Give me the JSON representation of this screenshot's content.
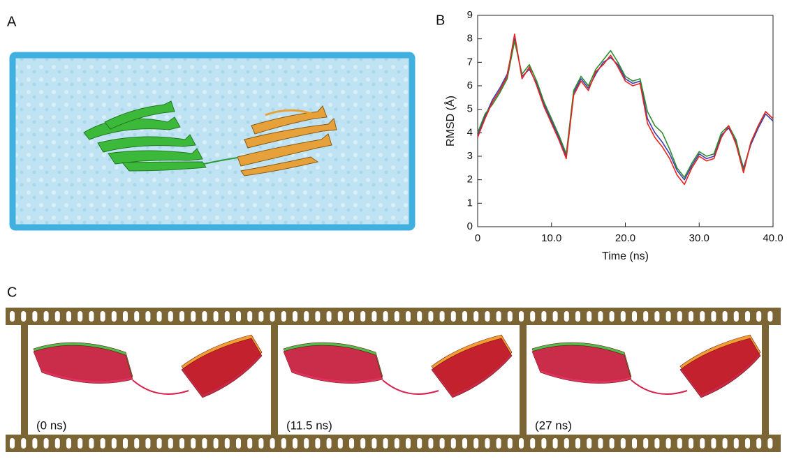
{
  "panel_labels": [
    "A",
    "B",
    "C"
  ],
  "frames": [
    {
      "label": "(0 ns)"
    },
    {
      "label": "(11.5 ns)"
    },
    {
      "label": "(27 ns)"
    }
  ],
  "chart_data": {
    "type": "line",
    "x_label": "Time (ns)",
    "y_label": "RMSD (Å)",
    "x": [
      0,
      1,
      2,
      3,
      4,
      5,
      6,
      7,
      8,
      9,
      10,
      11,
      12,
      13,
      14,
      15,
      16,
      17,
      18,
      19,
      20,
      21,
      22,
      23,
      24,
      25,
      26,
      27,
      28,
      29,
      30,
      31,
      32,
      33,
      34,
      35,
      36,
      37,
      38,
      39,
      40
    ],
    "series": [
      {
        "color": "#3b3fb0",
        "values": [
          3.9,
          4.7,
          5.4,
          5.9,
          6.5,
          8.0,
          6.4,
          6.7,
          6.1,
          5.2,
          4.5,
          3.8,
          3.0,
          5.7,
          6.3,
          5.9,
          6.5,
          7.0,
          7.2,
          6.9,
          6.3,
          6.1,
          6.2,
          4.6,
          4.0,
          3.6,
          3.1,
          2.4,
          2.0,
          2.6,
          3.1,
          2.9,
          3.0,
          3.9,
          4.2,
          3.6,
          2.5,
          3.5,
          4.2,
          4.8,
          4.5
        ]
      },
      {
        "color": "#2e8b2e",
        "values": [
          4.0,
          4.8,
          5.2,
          5.7,
          6.3,
          7.9,
          6.5,
          6.9,
          6.2,
          5.3,
          4.6,
          3.9,
          3.1,
          5.8,
          6.4,
          6.0,
          6.7,
          7.1,
          7.5,
          7.0,
          6.4,
          6.2,
          6.3,
          4.9,
          4.3,
          4.0,
          3.3,
          2.5,
          2.1,
          2.7,
          3.2,
          3.0,
          3.1,
          4.0,
          4.3,
          3.7,
          2.4,
          3.6,
          4.3,
          4.9,
          4.6
        ]
      },
      {
        "color": "#e8231e",
        "values": [
          3.8,
          4.6,
          5.3,
          5.8,
          6.4,
          8.2,
          6.3,
          6.8,
          6.0,
          5.1,
          4.4,
          3.7,
          2.9,
          5.6,
          6.2,
          5.8,
          6.6,
          6.9,
          7.3,
          6.8,
          6.2,
          6.0,
          6.1,
          4.4,
          3.8,
          3.4,
          2.9,
          2.2,
          1.8,
          2.5,
          3.0,
          2.8,
          2.9,
          3.8,
          4.3,
          3.5,
          2.3,
          3.6,
          4.3,
          4.9,
          4.6
        ]
      }
    ],
    "xlim": [
      0,
      40
    ],
    "ylim": [
      0,
      9
    ],
    "xticks": [
      0,
      {
        "value": 10,
        "label": "10.0"
      },
      {
        "value": 20,
        "label": "20.0"
      },
      {
        "value": 30,
        "label": "30.0"
      },
      {
        "value": 40,
        "label": "40.0"
      }
    ],
    "yticks": [
      0,
      1,
      2,
      3,
      4,
      5,
      6,
      7,
      8,
      9
    ]
  }
}
